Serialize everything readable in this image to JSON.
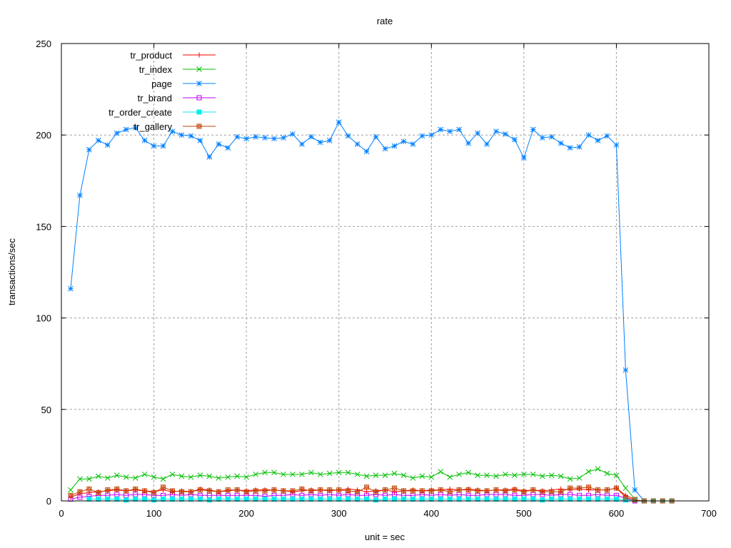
{
  "chart_data": {
    "type": "line",
    "title": "rate",
    "xlabel": "unit = sec",
    "ylabel": "transactions/sec",
    "xlim": [
      0,
      700
    ],
    "ylim": [
      0,
      250
    ],
    "xticks": [
      "0",
      "100",
      "200",
      "300",
      "400",
      "500",
      "600",
      "700"
    ],
    "yticks": [
      "0",
      "50",
      "100",
      "150",
      "200",
      "250"
    ],
    "grid": true,
    "legend_position": "top-left",
    "series": [
      {
        "name": "tr_product",
        "color": "#ff0000",
        "marker": "plus",
        "x_start": 10,
        "x_step": 10,
        "values": [
          2,
          4,
          4.5,
          5,
          5.5,
          6,
          5.5,
          6,
          5.5,
          5,
          6,
          5,
          5.5,
          5,
          6.5,
          6,
          5,
          5.5,
          6,
          5.5,
          6,
          6,
          6,
          5.5,
          5,
          5.5,
          6,
          6,
          5.5,
          6,
          6.5,
          6,
          5,
          5.5,
          6,
          5,
          5.5,
          6,
          5.5,
          6,
          6,
          6.5,
          6,
          6.5,
          6,
          5.5,
          6,
          6,
          6.5,
          5.5,
          6,
          5.5,
          6,
          6.5,
          6,
          6.5,
          6,
          6,
          6,
          7,
          3,
          1
        ]
      },
      {
        "name": "tr_index",
        "color": "#00c000",
        "marker": "cross",
        "x_start": 10,
        "x_step": 10,
        "values": [
          6,
          12,
          12,
          13.5,
          12.5,
          14,
          13,
          12.5,
          14.5,
          13,
          12,
          14.5,
          13.5,
          13,
          14,
          13.5,
          12.5,
          13,
          13.5,
          13,
          14.5,
          15.5,
          15.5,
          14.5,
          14.5,
          14.5,
          15.5,
          14.5,
          15,
          15.5,
          15.5,
          14.5,
          13.5,
          14,
          14,
          15,
          14,
          12.5,
          13.5,
          13,
          16,
          13,
          14.5,
          15.5,
          14,
          14,
          13.5,
          14.5,
          14,
          14.5,
          14.5,
          13.5,
          14,
          13.5,
          12,
          12.5,
          16,
          17.5,
          15,
          14,
          7,
          1
        ]
      },
      {
        "name": "page",
        "color": "#0080ff",
        "marker": "star",
        "x_start": 10,
        "x_step": 10,
        "values": [
          116,
          167,
          192,
          197,
          194.5,
          201,
          203,
          204,
          197,
          194,
          194,
          202,
          200,
          199.5,
          197,
          188,
          195,
          193,
          199,
          198,
          199,
          198.5,
          198,
          198.5,
          200.5,
          195,
          199,
          196,
          197,
          207,
          199.5,
          195,
          191,
          199,
          192.5,
          194,
          196.5,
          195,
          199.5,
          200,
          203,
          202,
          203,
          195.5,
          201,
          195,
          202,
          200.5,
          197.5,
          187.5,
          203,
          198.5,
          199,
          195.5,
          193,
          193.5,
          200,
          197,
          199.5,
          194.5,
          71.5,
          6,
          0
        ]
      },
      {
        "name": "tr_brand",
        "color": "#c000ff",
        "marker": "square",
        "x_start": 10,
        "x_step": 10,
        "values": [
          1,
          2,
          2.5,
          3,
          3,
          3.5,
          3,
          3.5,
          3.5,
          3,
          3,
          3.5,
          3,
          3.5,
          3,
          3,
          3,
          3,
          3,
          3,
          3,
          2.5,
          3,
          3,
          3.5,
          3,
          3.5,
          3,
          3.5,
          3,
          3.5,
          3,
          3,
          3.5,
          3,
          3.5,
          3,
          3,
          3.5,
          3,
          3.5,
          3,
          3.5,
          3,
          3,
          3.5,
          3.5,
          3.5,
          3,
          3,
          3.5,
          3.5,
          3,
          3.5,
          3.5,
          3,
          3,
          3.5,
          3,
          3,
          1.5,
          0
        ]
      },
      {
        "name": "tr_order_create",
        "color": "#00eeee",
        "marker": "filled-square",
        "x_start": 30,
        "x_step": 10,
        "values": [
          1,
          1,
          1,
          1,
          0.5,
          1,
          1,
          0.5,
          1,
          1,
          1,
          1,
          1,
          0.5,
          1,
          1,
          1,
          1,
          1,
          1,
          1,
          1,
          1,
          1,
          1,
          1,
          1,
          1,
          1,
          1,
          1,
          0.5,
          1,
          1,
          1,
          1,
          1,
          1,
          1,
          1,
          1,
          1,
          1,
          1,
          1,
          1,
          1,
          1,
          1,
          0.5,
          1,
          1,
          1,
          1,
          1,
          1,
          1,
          1,
          0.5,
          0.5,
          0,
          0,
          0,
          0
        ]
      },
      {
        "name": "tr_gallery",
        "color": "#c04000",
        "marker": "circle-square",
        "x_start": 10,
        "x_step": 10,
        "values": [
          3,
          5,
          6.5,
          4.5,
          6,
          6.5,
          5.5,
          6.5,
          5.5,
          4.5,
          7.5,
          5.5,
          5,
          5,
          6,
          5.5,
          5,
          6,
          6,
          5,
          5.5,
          5.5,
          6,
          5.5,
          5.5,
          6.5,
          5.5,
          6,
          6,
          6,
          5.5,
          5,
          7.5,
          5,
          6,
          7,
          5.5,
          5.5,
          5.5,
          5.5,
          6,
          5,
          6,
          6,
          5.5,
          5.5,
          6,
          5.5,
          6,
          5,
          6,
          5,
          5,
          5,
          7,
          7,
          7.5,
          6,
          6,
          7,
          2,
          0.5,
          0,
          0,
          0,
          0
        ]
      }
    ]
  }
}
